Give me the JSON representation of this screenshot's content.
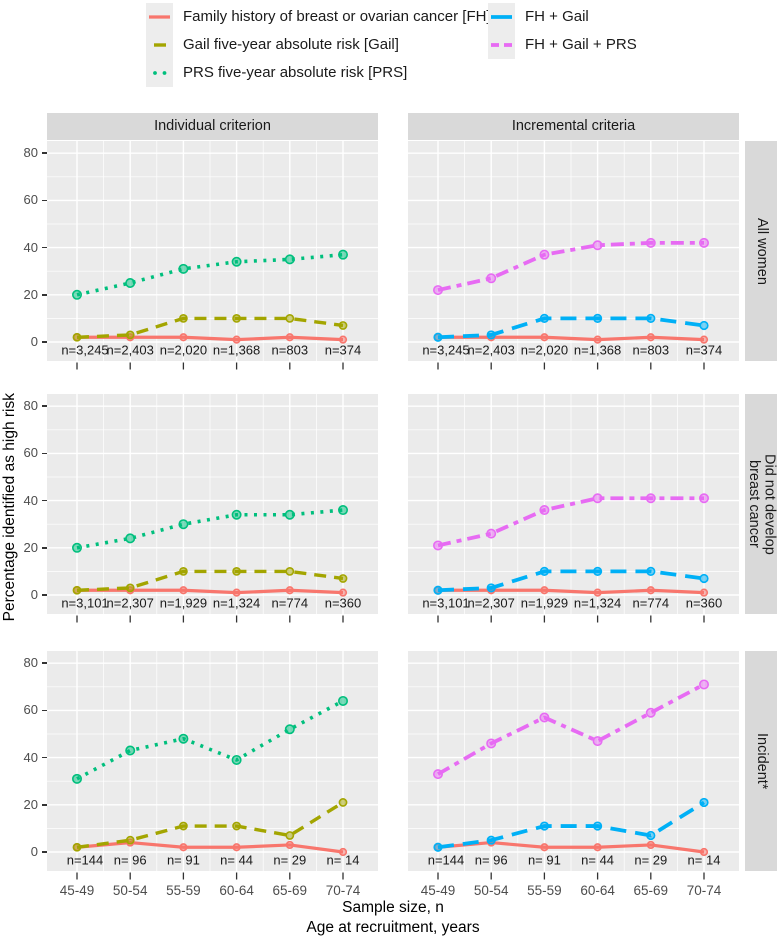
{
  "page": {
    "background": "#ffffff"
  },
  "legend": {
    "columns": [
      {
        "items": [
          {
            "id": "FH",
            "label": "Family history of breast or ovarian cancer [FH]"
          },
          {
            "id": "Gail",
            "label": "Gail five-year absolute risk [Gail]"
          },
          {
            "id": "PRS",
            "label": "PRS five-year absolute risk [PRS]"
          }
        ]
      },
      {
        "items": [
          {
            "id": "FHGail",
            "label": "FH + Gail"
          },
          {
            "id": "FHGailPRS",
            "label": "FH + Gail + PRS"
          }
        ]
      }
    ]
  },
  "chart_data": {
    "type": "line",
    "facet_columns": [
      "Individual criterion",
      "Incremental criteria"
    ],
    "facet_rows": [
      "All women",
      "Did not develop\nbreast cancer",
      "Incident*"
    ],
    "x_categories": [
      "45-49",
      "50-54",
      "55-59",
      "60-64",
      "65-69",
      "70-74"
    ],
    "xlabel_line1": "Sample size, n",
    "xlabel_line2": "Age at recruitment, years",
    "ylabel": "Percentage identified as high risk",
    "ylim": [
      0,
      80
    ],
    "yticks": [
      0,
      20,
      40,
      60,
      80
    ],
    "yticks_minor": [
      10,
      30,
      50,
      70
    ],
    "grid": "on",
    "legend_position": "top",
    "colors": {
      "panel_background": "#EBEBEB",
      "strip_background": "#D9D9D9",
      "gridline": "#FFFFFF",
      "tick": "#333333",
      "axis_text": "#4D4D4D",
      "label_text": "#1a1a1a"
    },
    "series_defs": {
      "FH": {
        "label": "Family history of breast or ovarian cancer [FH]",
        "color": "#F8766D",
        "dash": "",
        "width": 3.2,
        "marker_r": 3.3
      },
      "Gail": {
        "label": "Gail five-year absolute risk [Gail]",
        "color": "#A3A500",
        "dash": "12 8",
        "width": 3.4,
        "marker_r": 3.6
      },
      "PRS": {
        "label": "PRS five-year absolute risk [PRS]",
        "color": "#00BF7D",
        "dash": "3 6.5",
        "width": 3.6,
        "marker_r": 4.2
      },
      "FHGail": {
        "label": "FH + Gail",
        "color": "#00B0F6",
        "dash": "16 9",
        "width": 3.8,
        "marker_r": 3.8
      },
      "FHGailPRS": {
        "label": "FH + Gail + PRS",
        "color": "#E76BF3",
        "dash": "13 6 5 6",
        "width": 3.8,
        "marker_r": 4.2
      }
    },
    "panels": [
      {
        "row": "All women",
        "col": "Individual criterion",
        "sample_labels": [
          "n=3,245",
          "n=2,403",
          "n=2,020",
          "n=1,368",
          "n=803",
          "n=374"
        ],
        "series": [
          {
            "id": "FH",
            "values": [
              2,
              2,
              2,
              1,
              2,
              1
            ]
          },
          {
            "id": "Gail",
            "values": [
              2,
              3,
              10,
              10,
              10,
              7
            ]
          },
          {
            "id": "PRS",
            "values": [
              20,
              25,
              31,
              34,
              35,
              37
            ]
          }
        ]
      },
      {
        "row": "All women",
        "col": "Incremental criteria",
        "sample_labels": [
          "n=3,245",
          "n=2,403",
          "n=2,020",
          "n=1,368",
          "n=803",
          "n=374"
        ],
        "series": [
          {
            "id": "FH",
            "values": [
              2,
              2,
              2,
              1,
              2,
              1
            ]
          },
          {
            "id": "FHGail",
            "values": [
              2,
              3,
              10,
              10,
              10,
              7
            ]
          },
          {
            "id": "FHGailPRS",
            "values": [
              22,
              27,
              37,
              41,
              42,
              42
            ]
          }
        ]
      },
      {
        "row": "Did not develop breast cancer",
        "col": "Individual criterion",
        "sample_labels": [
          "n=3,101",
          "n=2,307",
          "n=1,929",
          "n=1,324",
          "n=774",
          "n=360"
        ],
        "series": [
          {
            "id": "FH",
            "values": [
              2,
              2,
              2,
              1,
              2,
              1
            ]
          },
          {
            "id": "Gail",
            "values": [
              2,
              3,
              10,
              10,
              10,
              7
            ]
          },
          {
            "id": "PRS",
            "values": [
              20,
              24,
              30,
              34,
              34,
              36
            ]
          }
        ]
      },
      {
        "row": "Did not develop breast cancer",
        "col": "Incremental criteria",
        "sample_labels": [
          "n=3,101",
          "n=2,307",
          "n=1,929",
          "n=1,324",
          "n=774",
          "n=360"
        ],
        "series": [
          {
            "id": "FH",
            "values": [
              2,
              2,
              2,
              1,
              2,
              1
            ]
          },
          {
            "id": "FHGail",
            "values": [
              2,
              3,
              10,
              10,
              10,
              7
            ]
          },
          {
            "id": "FHGailPRS",
            "values": [
              21,
              26,
              36,
              41,
              41,
              41
            ]
          }
        ]
      },
      {
        "row": "Incident*",
        "col": "Individual criterion",
        "sample_labels": [
          "n=144",
          "n= 96",
          "n= 91",
          "n= 44",
          "n= 29",
          "n= 14"
        ],
        "series": [
          {
            "id": "FH",
            "values": [
              2,
              4,
              2,
              2,
              3,
              0
            ]
          },
          {
            "id": "Gail",
            "values": [
              2,
              5,
              11,
              11,
              7,
              21
            ]
          },
          {
            "id": "PRS",
            "values": [
              31,
              43,
              48,
              39,
              52,
              64
            ]
          }
        ]
      },
      {
        "row": "Incident*",
        "col": "Incremental criteria",
        "sample_labels": [
          "n=144",
          "n= 96",
          "n= 91",
          "n= 44",
          "n= 29",
          "n= 14"
        ],
        "series": [
          {
            "id": "FH",
            "values": [
              2,
              4,
              2,
              2,
              3,
              0
            ]
          },
          {
            "id": "FHGail",
            "values": [
              2,
              5,
              11,
              11,
              7,
              21
            ]
          },
          {
            "id": "FHGailPRS",
            "values": [
              33,
              46,
              57,
              47,
              59,
              71
            ]
          }
        ]
      }
    ]
  }
}
